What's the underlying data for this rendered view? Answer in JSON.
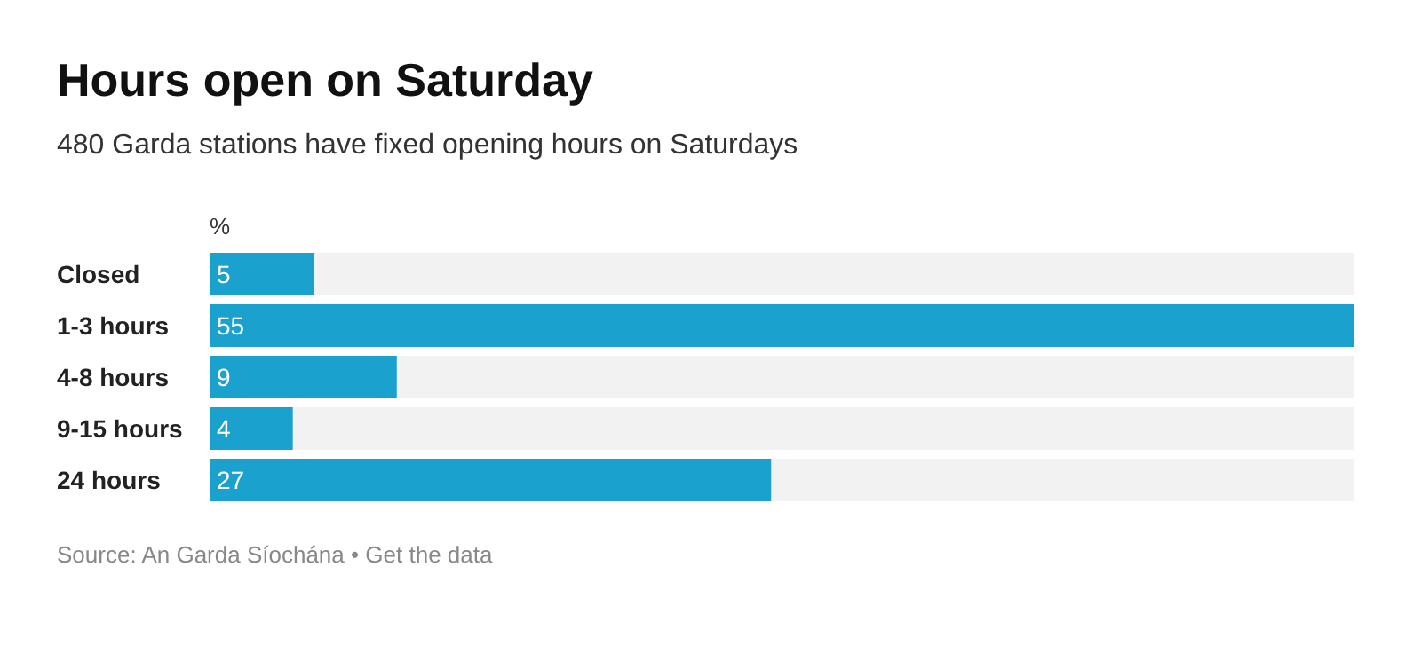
{
  "chart_data": {
    "type": "bar",
    "orientation": "horizontal",
    "title": "Hours open on Saturday",
    "subtitle": "480 Garda stations have fixed opening hours on Saturdays",
    "xlabel": "%",
    "categories": [
      "Closed",
      "1-3 hours",
      "4-8 hours",
      "9-15 hours",
      "24 hours"
    ],
    "values": [
      5,
      55,
      9,
      4,
      27
    ],
    "color": "#1ba1cd",
    "data_labels": true,
    "annotations": [
      "Source: An Garda Síochána • Get the data"
    ]
  }
}
